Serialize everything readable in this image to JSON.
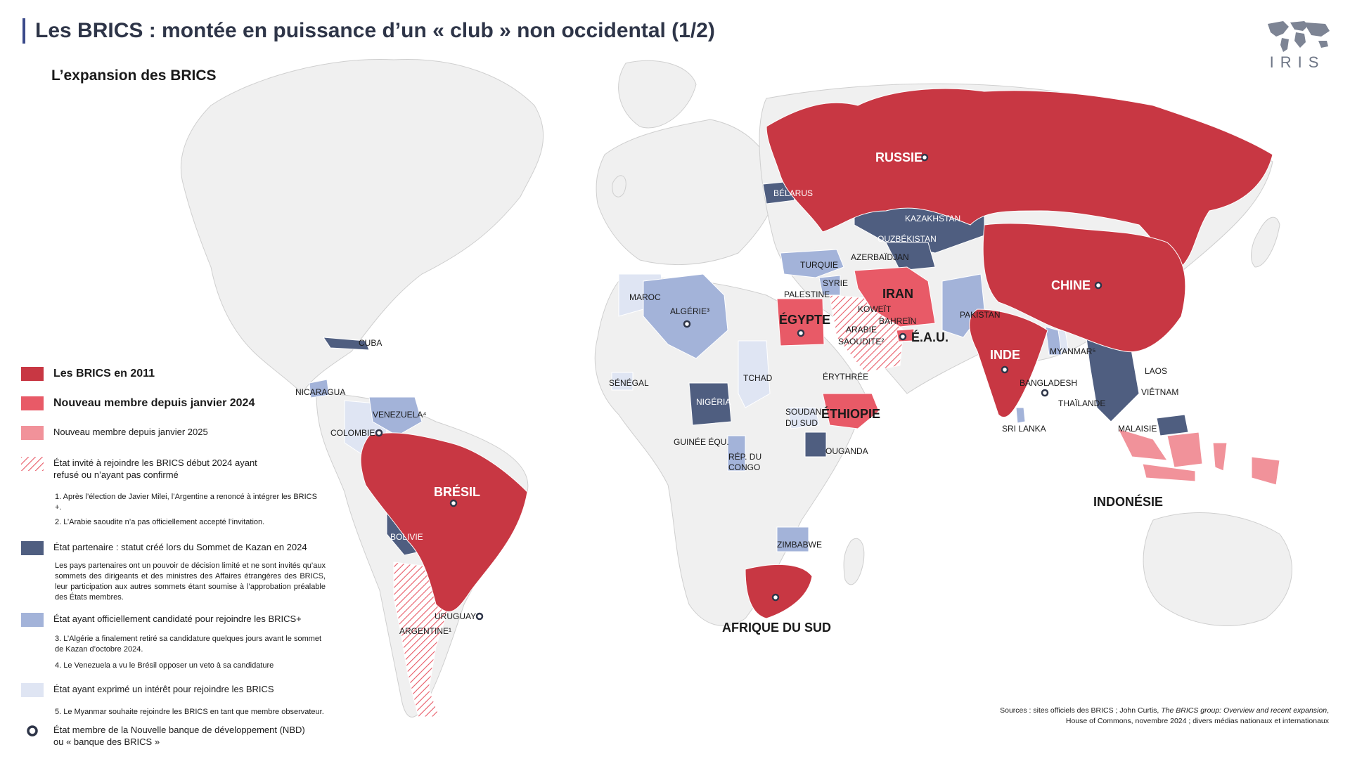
{
  "title": "Les BRICS : montée en puissance d’un « club » non occidental (1/2)",
  "subtitle": "L’expansion des BRICS",
  "logo": {
    "text": "IRIS"
  },
  "colors": {
    "brics_2011": "#c83743",
    "member_2024": "#e85a67",
    "member_2025": "#f1929a",
    "invited_hatch": "#e85a67",
    "partner": "#4f5e80",
    "candidate": "#a3b3d9",
    "interest": "#dfe5f3",
    "other_land": "#f0f0f0",
    "ndb_ring": "#2e3548"
  },
  "labels": {
    "russie": "RUSSIE",
    "chine": "CHINE",
    "inde": "INDE",
    "bresil": "BRÉSIL",
    "afrique_du_sud": "AFRIQUE DU SUD",
    "iran": "IRAN",
    "egypte": "ÉGYPTE",
    "ethiopie": "ÉTHIOPIE",
    "eau": "É.A.U.",
    "indonesie": "INDONÉSIE",
    "belarus": "BÉLARUS",
    "kazakhstan": "KAZAKHSTAN",
    "ouzbekistan": "OUZBÉKISTAN",
    "azerbaidjan": "AZERBAÏDJAN",
    "turquie": "TURQUIE",
    "syrie": "SYRIE",
    "palestine": "PALESTINE",
    "koweit": "KOWEÏT",
    "bahrein": "BAHREÏN",
    "arabie": "ARABIE",
    "saoudite": "SAOUDITE²",
    "pakistan": "PAKISTAN",
    "maroc": "MAROC",
    "algerie": "ALGÉRIE³",
    "tchad": "TCHAD",
    "senegal": "SÉNÉGAL",
    "nigeria": "NIGÉRIA",
    "erythree": "ÉRYTHRÉE",
    "soudan": "SOUDAN",
    "du_sud": "DU SUD",
    "ouganda": "OUGANDA",
    "guinee": "GUINÉE ÉQU.",
    "rep_du": "RÉP. DU",
    "congo": "CONGO",
    "zimbabwe": "ZIMBABWE",
    "cuba": "CUBA",
    "nicaragua": "NICARAGUA",
    "venezuela": "VENEZUELA⁴",
    "colombie": "COLOMBIE",
    "bolivie": "BOLIVIE",
    "uruguay": "URUGUAY",
    "argentine": "ARGENTINE¹",
    "myanmar": "MYANMAR⁵",
    "laos": "LAOS",
    "bangladesh": "BANGLADESH",
    "thailande": "THAÏLANDE",
    "vietnam": "VIÊTNAM",
    "sri_lanka": "SRI LANKA",
    "malaisie": "MALAISIE"
  },
  "legend": {
    "brics_2011": "Les BRICS en 2011",
    "member_2024": "Nouveau membre depuis janvier 2024",
    "member_2025": "Nouveau membre depuis janvier 2025",
    "invited": "État invité à rejoindre les BRICS début 2024 ayant refusé ou n’ayant pas confirmé",
    "note1": "1. Après l’élection de Javier Milei, l’Argentine a renoncé à intégrer les BRICS +.",
    "note2": "2. L’Arabie saoudite  n’a pas officiellement accepté l’invitation.",
    "partner": "État partenaire : statut créé lors du Sommet de Kazan en 2024",
    "partner_note": "Les pays partenaires ont un pouvoir de décision limité et ne sont invités qu’aux sommets des dirigeants et des ministres des Affaires étrangères des BRICS, leur participation aux autres sommets étant soumise à l’approbation préalable des États membres.",
    "candidate": "État ayant officiellement candidaté pour rejoindre les BRICS+",
    "note3": "3. L’Algérie a finalement retiré sa candidature quelques jours avant le sommet de Kazan d’octobre 2024.",
    "note4": "4. Le Venezuela a vu le Brésil opposer un veto à sa candidature",
    "interest": "État ayant exprimé un intérêt pour rejoindre les BRICS",
    "note5": "5. Le Myanmar souhaite rejoindre les BRICS en tant que membre observateur.",
    "ndb": "État membre de la Nouvelle banque de développement (NBD) ou « banque des BRICS »"
  },
  "sources": {
    "line1_a": "Sources : sites officiels des BRICS ; John Curtis, ",
    "line1_b": "The BRICS group: Overview and recent expansion",
    "line1_c": ",",
    "line2": "House of Commons, novembre 2024 ; divers médias nationaux et internationaux"
  }
}
